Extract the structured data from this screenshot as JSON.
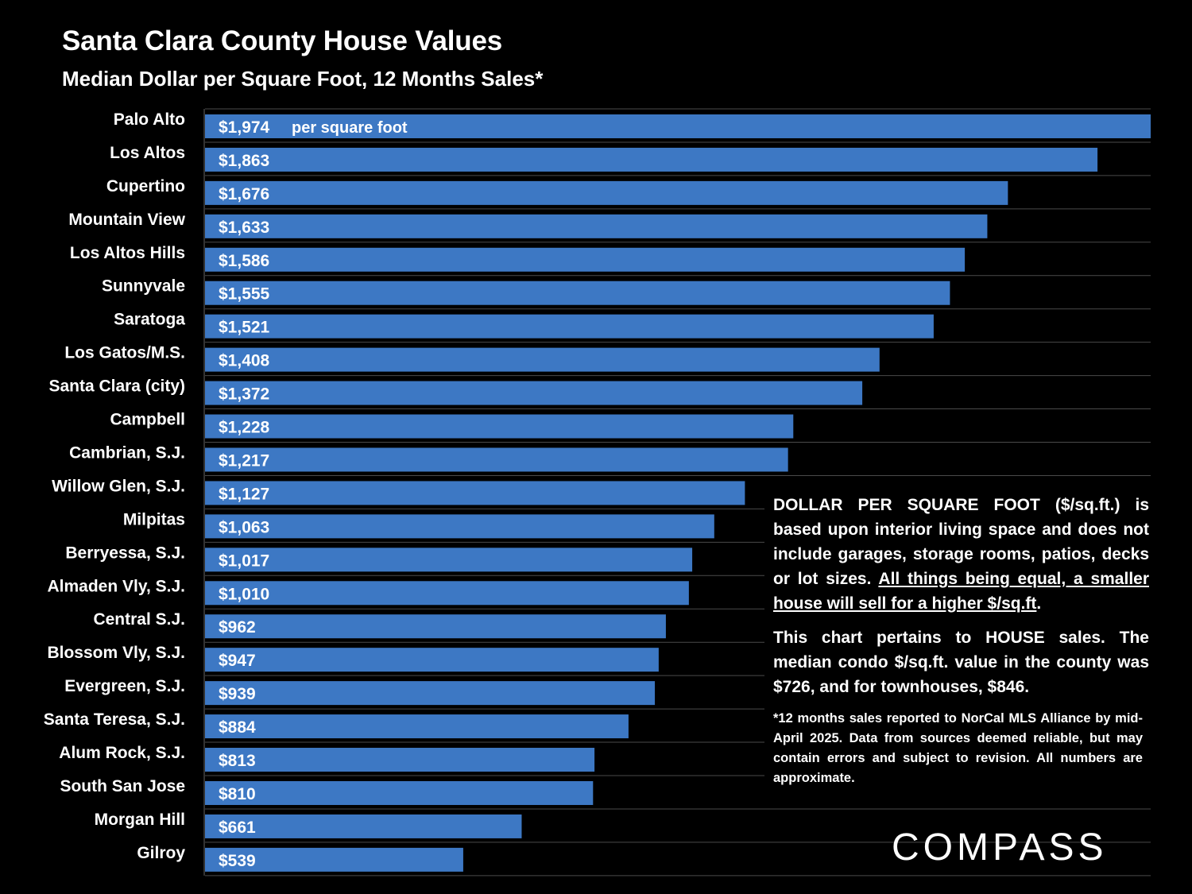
{
  "title": "Santa Clara County House Values",
  "subtitle": "Median Dollar per Square Foot, 12 Months Sales*",
  "unit_label": "per square foot",
  "colors": {
    "bar": "#3D78C4",
    "background": "#000000",
    "gridline": "#4a4a4a"
  },
  "chart_data": {
    "type": "bar",
    "orientation": "horizontal",
    "categories": [
      "Palo Alto",
      "Los Altos",
      "Cupertino",
      "Mountain View",
      "Los Altos Hills",
      "Sunnyvale",
      "Saratoga",
      "Los Gatos/M.S.",
      "Santa Clara (city)",
      "Campbell",
      "Cambrian, S.J.",
      "Willow Glen, S.J.",
      "Milpitas",
      "Berryessa, S.J.",
      "Almaden Vly, S.J.",
      "Central S.J.",
      "Blossom Vly, S.J.",
      "Evergreen, S.J.",
      "Santa Teresa, S.J.",
      "Alum Rock, S.J.",
      "South San Jose",
      "Morgan Hill",
      "Gilroy"
    ],
    "values": [
      1974,
      1863,
      1676,
      1633,
      1586,
      1555,
      1521,
      1408,
      1372,
      1228,
      1217,
      1127,
      1063,
      1017,
      1010,
      962,
      947,
      939,
      884,
      813,
      810,
      661,
      539
    ],
    "value_labels": [
      "$1,974",
      "$1,863",
      "$1,676",
      "$1,633",
      "$1,586",
      "$1,555",
      "$1,521",
      "$1,408",
      "$1,372",
      "$1,228",
      "$1,217",
      "$1,127",
      "$1,063",
      "$1,017",
      "$1,010",
      "$962",
      "$947",
      "$939",
      "$884",
      "$813",
      "$810",
      "$661",
      "$539"
    ],
    "title": "Santa Clara County House Values",
    "xlim": [
      0,
      1974
    ],
    "grid": true
  },
  "note": {
    "para1_text": "DOLLAR PER SQUARE FOOT ($/sq.ft.) is based upon interior living space and does not include garages, storage rooms, patios, decks or lot sizes. ",
    "para1_underlined": "All things being equal, a smaller house will sell for a higher $/sq.ft",
    "para1_end": ".",
    "para2": "This chart pertains to HOUSE sales. The median condo $/sq.ft. value in the county was $726, and for townhouses, $846.",
    "footnote": "*12 months sales reported to NorCal MLS Alliance by mid-April 2025. Data from sources deemed reliable, but may contain errors and subject to revision. All numbers are approximate."
  },
  "logo_text": "COMPASS"
}
